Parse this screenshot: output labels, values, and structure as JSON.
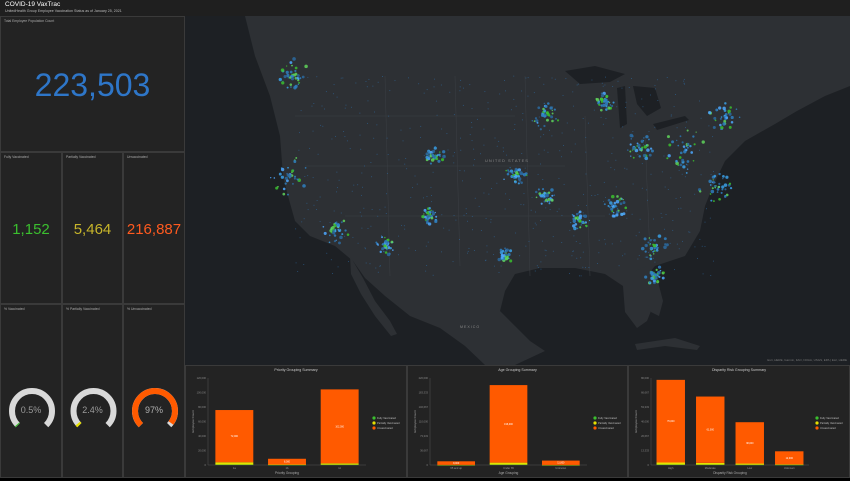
{
  "header": {
    "title": "COVID-19 VaxTrac",
    "subtitle": "UnitedHealth Group Employee Vaccination Status as of January 25, 2021"
  },
  "total": {
    "label": "Total Employee Population Count",
    "value": "223,503"
  },
  "counts": [
    {
      "label": "Fully Vaccinated",
      "value": "1,152",
      "color": "#3bbf2f"
    },
    {
      "label": "Partially Vaccinated",
      "value": "5,464",
      "color": "#c7b52a"
    },
    {
      "label": "Unvaccinated",
      "value": "216,887",
      "color": "#ff5a1f"
    }
  ],
  "gauges": [
    {
      "label": "% Vaccinated",
      "value": "0.5%",
      "fraction": 0.005,
      "color": "#3bbf2f"
    },
    {
      "label": "% Partially Vaccinated",
      "value": "2.4%",
      "fraction": 0.024,
      "color": "#e6e000"
    },
    {
      "label": "% Unvaccinated",
      "value": "97%",
      "fraction": 0.97,
      "color": "#ff5a00"
    }
  ],
  "map": {
    "country_label": "UNITED STATES",
    "mexico_label": "MEXICO",
    "attribution": "Esri, HERE, Garmin, FAO, NOAA, USGS, EPA | Esri, HERE"
  },
  "colors": {
    "unvaccinated": "#ff5a00",
    "partial": "#e6e000",
    "vaccinated": "#3bbf2f"
  },
  "chart_data": [
    {
      "type": "bar",
      "title": "Priority Grouping Summary",
      "xlabel": "Priority Grouping",
      "ylabel": "Employee Count",
      "categories": [
        "1a",
        "1b",
        "1c"
      ],
      "ylim": [
        0,
        120000
      ],
      "series": [
        {
          "name": "Fully Vaccinated",
          "values": [
            600,
            100,
            500
          ]
        },
        {
          "name": "Partially Vaccinated",
          "values": [
            3200,
            500,
            1800
          ]
        },
        {
          "name": "Unvaccinated",
          "values": [
            72000,
            8000,
            102000
          ]
        }
      ],
      "legend": "right"
    },
    {
      "type": "bar",
      "title": "Age Grouping Summary",
      "xlabel": "Age Grouping",
      "ylabel": "Employee Count",
      "categories": [
        "65 and up",
        "Under 65",
        "Unknown"
      ],
      "ylim": [
        0,
        220000
      ],
      "series": [
        {
          "name": "Fully Vaccinated",
          "values": [
            60,
            1050,
            40
          ]
        },
        {
          "name": "Partially Vaccinated",
          "values": [
            300,
            5000,
            160
          ]
        },
        {
          "name": "Unvaccinated",
          "values": [
            9000,
            196000,
            11000
          ]
        }
      ],
      "legend": "right"
    },
    {
      "type": "bar",
      "title": "Disparity Risk Grouping Summary",
      "xlabel": "Disparity Risk Grouping",
      "ylabel": "Employee Count",
      "categories": [
        "High",
        "Moderate",
        "Low",
        "Unknown"
      ],
      "ylim": [
        0,
        80000
      ],
      "series": [
        {
          "name": "Fully Vaccinated",
          "values": [
            400,
            350,
            250,
            100
          ]
        },
        {
          "name": "Partially Vaccinated",
          "values": [
            1900,
            1600,
            1100,
            500
          ]
        },
        {
          "name": "Unvaccinated",
          "values": [
            76000,
            61000,
            38000,
            12000
          ]
        }
      ],
      "legend": "right"
    }
  ]
}
